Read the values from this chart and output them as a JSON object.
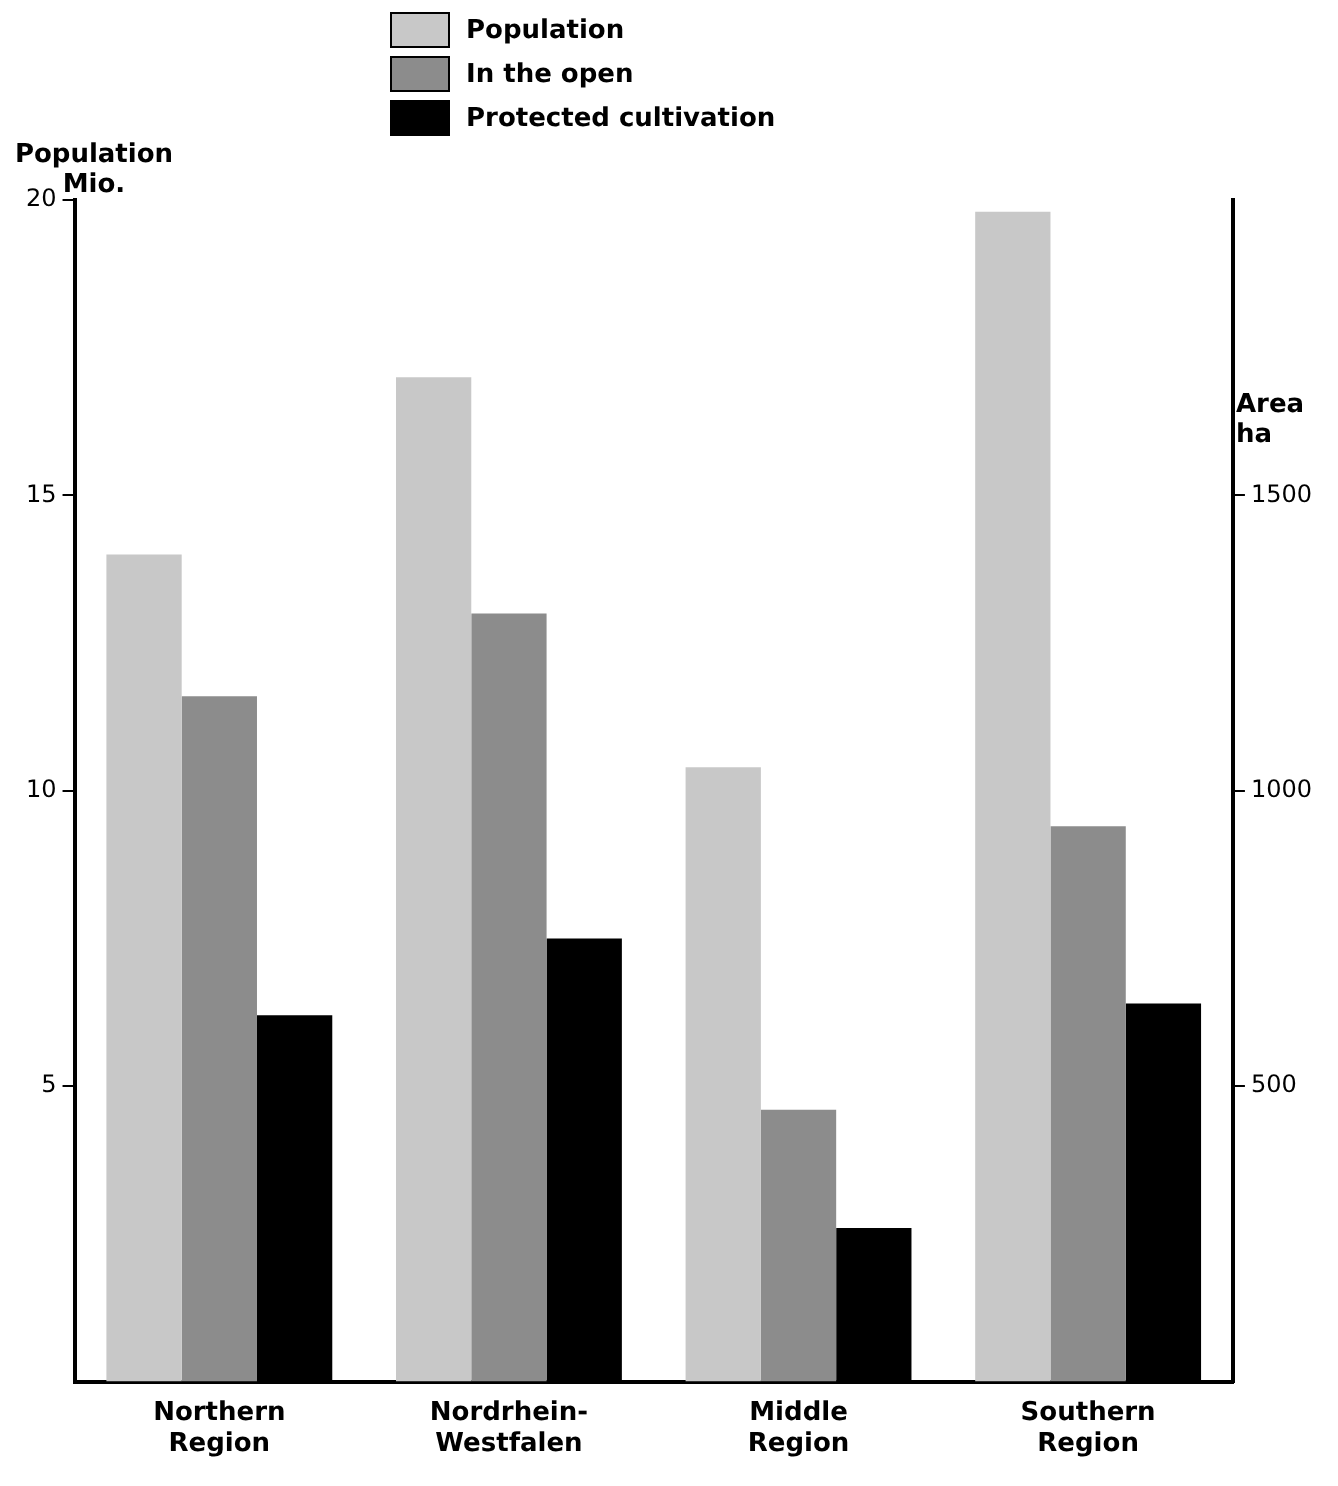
{
  "chart_data": {
    "type": "bar",
    "ylabel": "Population Mio.",
    "y2label": "Area ha",
    "categories": [
      "Northern Region",
      "Nordrhein-Westfalen",
      "Middle Region",
      "Southern Region"
    ],
    "series": [
      {
        "name": "Population",
        "color": "#c8c8c8",
        "values": [
          14.0,
          17.0,
          10.4,
          19.8
        ]
      },
      {
        "name": "In the open",
        "color": "#8c8c8c",
        "axis": "y2",
        "values": [
          1160,
          1300,
          460,
          940
        ]
      },
      {
        "name": "Protected cultivation",
        "color": "#000000",
        "axis": "y2",
        "values": [
          620,
          750,
          260,
          640
        ]
      }
    ],
    "ylim": [
      0,
      20
    ],
    "yticks": [
      5,
      10,
      15,
      20
    ],
    "y2lim": [
      0,
      2000
    ],
    "y2ticks": [
      500,
      1000,
      1500
    ],
    "grid": false,
    "legend": "top"
  }
}
